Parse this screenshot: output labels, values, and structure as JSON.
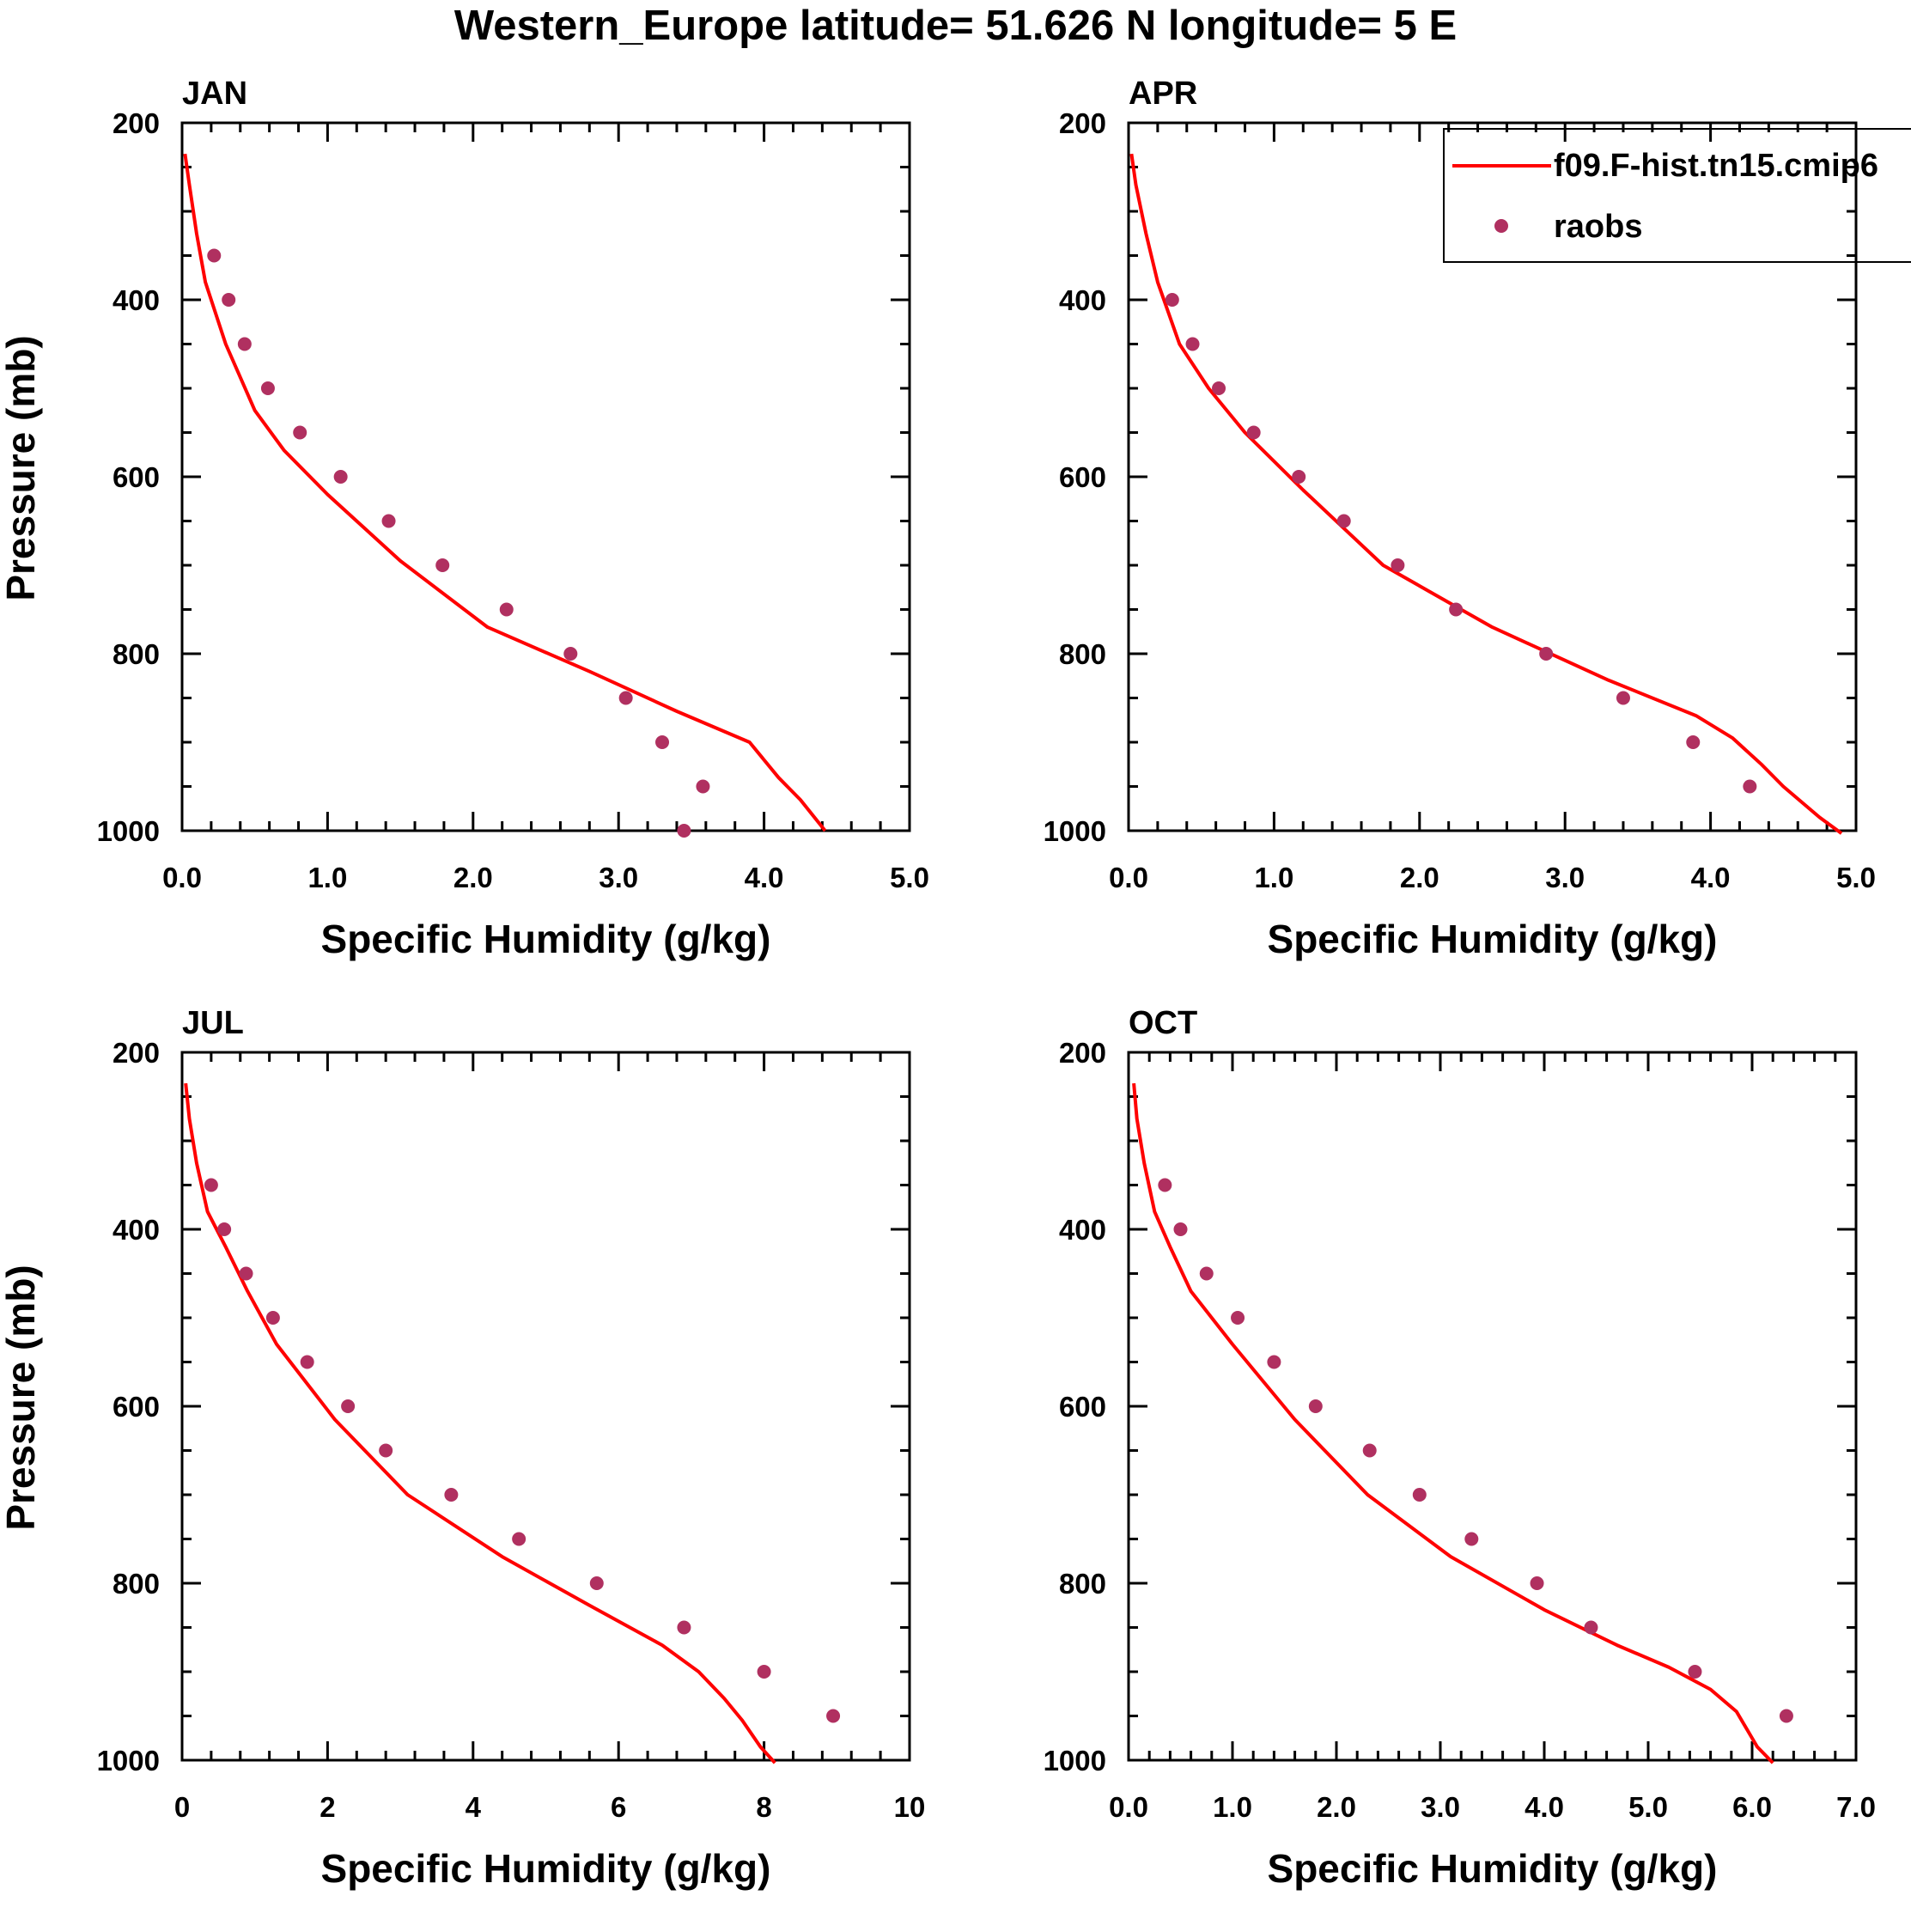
{
  "title": "Western_Europe  latitude= 51.626 N longitude= 5 E",
  "colors": {
    "model": "#ff0000",
    "raobs": "#b03060",
    "axis": "#000000"
  },
  "legend": {
    "model_label": "f09.F-hist.tn15.cmip6",
    "raobs_label": "raobs",
    "placement": "top-right of APR panel"
  },
  "chart_data": [
    {
      "type": "scatter",
      "panel_title": "JAN",
      "xlabel": "Specific Humidity (g/kg)",
      "ylabel": "Pressure (mb)",
      "xlim": [
        0,
        5
      ],
      "ylim": [
        1000,
        200
      ],
      "y_inverted": true,
      "xticks": [
        0,
        1,
        2,
        3,
        4,
        5
      ],
      "xtick_labels": [
        "0.0",
        "1.0",
        "2.0",
        "3.0",
        "4.0",
        "5.0"
      ],
      "yticks": [
        200,
        400,
        600,
        800,
        1000
      ],
      "ytick_labels": [
        "200",
        "400",
        "600",
        "800",
        "1000"
      ],
      "series": [
        {
          "name": "f09.F-hist.tn15.cmip6",
          "kind": "line",
          "x": [
            0.02,
            0.05,
            0.1,
            0.16,
            0.3,
            0.5,
            0.7,
            1.0,
            1.5,
            2.1,
            2.8,
            3.4,
            3.9,
            4.1,
            4.25,
            4.42
          ],
          "y": [
            235,
            270,
            325,
            380,
            450,
            525,
            570,
            620,
            695,
            770,
            820,
            865,
            900,
            940,
            965,
            1000
          ]
        },
        {
          "name": "raobs",
          "kind": "points",
          "x": [
            0.22,
            0.32,
            0.43,
            0.59,
            0.81,
            1.09,
            1.42,
            1.79,
            2.23,
            2.67,
            3.05,
            3.3,
            3.58,
            3.45
          ],
          "y": [
            350,
            400,
            450,
            500,
            550,
            600,
            650,
            700,
            750,
            800,
            850,
            900,
            950,
            1000
          ]
        }
      ]
    },
    {
      "type": "scatter",
      "panel_title": "APR",
      "xlabel": "Specific Humidity (g/kg)",
      "ylabel": "",
      "xlim": [
        0,
        5
      ],
      "ylim": [
        1000,
        200
      ],
      "y_inverted": true,
      "xticks": [
        0,
        1,
        2,
        3,
        4,
        5
      ],
      "xtick_labels": [
        "0.0",
        "1.0",
        "2.0",
        "3.0",
        "4.0",
        "5.0"
      ],
      "yticks": [
        200,
        400,
        600,
        800,
        1000
      ],
      "ytick_labels": [
        "200",
        "400",
        "600",
        "800",
        "1000"
      ],
      "series": [
        {
          "name": "f09.F-hist.tn15.cmip6",
          "kind": "line",
          "x": [
            0.02,
            0.05,
            0.12,
            0.2,
            0.35,
            0.55,
            0.8,
            1.2,
            1.75,
            2.5,
            3.3,
            3.9,
            4.15,
            4.35,
            4.5,
            4.75,
            4.9
          ],
          "y": [
            235,
            270,
            325,
            380,
            450,
            500,
            550,
            615,
            700,
            770,
            830,
            870,
            895,
            925,
            950,
            985,
            1003
          ]
        },
        {
          "name": "raobs",
          "kind": "points",
          "x": [
            0.3,
            0.44,
            0.62,
            0.86,
            1.17,
            1.48,
            1.85,
            2.25,
            2.87,
            3.4,
            3.88,
            4.27
          ],
          "y": [
            400,
            450,
            500,
            550,
            600,
            650,
            700,
            750,
            800,
            850,
            900,
            950
          ]
        }
      ]
    },
    {
      "type": "scatter",
      "panel_title": "JUL",
      "xlabel": "Specific Humidity (g/kg)",
      "ylabel": "Pressure (mb)",
      "xlim": [
        0,
        10
      ],
      "ylim": [
        1000,
        200
      ],
      "y_inverted": true,
      "xticks": [
        0,
        2,
        4,
        6,
        8,
        10
      ],
      "xtick_labels": [
        "0",
        "2",
        "4",
        "6",
        "8",
        "10"
      ],
      "yticks": [
        200,
        400,
        600,
        800,
        1000
      ],
      "ytick_labels": [
        "200",
        "400",
        "600",
        "800",
        "1000"
      ],
      "series": [
        {
          "name": "f09.F-hist.tn15.cmip6",
          "kind": "line",
          "x": [
            0.05,
            0.1,
            0.2,
            0.35,
            0.6,
            0.9,
            1.3,
            2.1,
            3.1,
            4.4,
            5.6,
            6.6,
            7.1,
            7.45,
            7.7,
            7.95,
            8.15
          ],
          "y": [
            235,
            275,
            325,
            380,
            420,
            470,
            530,
            615,
            700,
            770,
            825,
            870,
            900,
            930,
            955,
            985,
            1003
          ]
        },
        {
          "name": "raobs",
          "kind": "points",
          "x": [
            0.4,
            0.58,
            0.88,
            1.25,
            1.72,
            2.28,
            2.8,
            3.7,
            4.63,
            5.7,
            6.9,
            8.0,
            8.95
          ],
          "y": [
            350,
            400,
            450,
            500,
            550,
            600,
            650,
            700,
            750,
            800,
            850,
            900,
            950
          ]
        }
      ]
    },
    {
      "type": "scatter",
      "panel_title": "OCT",
      "xlabel": "Specific Humidity (g/kg)",
      "ylabel": "",
      "xlim": [
        0,
        7
      ],
      "ylim": [
        1000,
        200
      ],
      "y_inverted": true,
      "xticks": [
        0,
        1,
        2,
        3,
        4,
        5,
        6,
        7
      ],
      "xtick_labels": [
        "0.0",
        "1.0",
        "2.0",
        "3.0",
        "4.0",
        "5.0",
        "6.0",
        "7.0"
      ],
      "yticks": [
        200,
        400,
        600,
        800,
        1000
      ],
      "ytick_labels": [
        "200",
        "400",
        "600",
        "800",
        "1000"
      ],
      "series": [
        {
          "name": "f09.F-hist.tn15.cmip6",
          "kind": "line",
          "x": [
            0.05,
            0.08,
            0.15,
            0.25,
            0.4,
            0.6,
            1.0,
            1.6,
            2.3,
            3.1,
            4.0,
            4.7,
            5.2,
            5.6,
            5.85,
            6.05,
            6.2
          ],
          "y": [
            235,
            275,
            325,
            380,
            420,
            470,
            530,
            615,
            700,
            770,
            830,
            870,
            895,
            920,
            945,
            985,
            1003
          ]
        },
        {
          "name": "raobs",
          "kind": "points",
          "x": [
            0.35,
            0.5,
            0.75,
            1.05,
            1.4,
            1.8,
            2.32,
            2.8,
            3.3,
            3.93,
            4.45,
            5.45,
            6.33
          ],
          "y": [
            350,
            400,
            450,
            500,
            550,
            600,
            650,
            700,
            750,
            800,
            850,
            900,
            950
          ]
        }
      ]
    }
  ]
}
